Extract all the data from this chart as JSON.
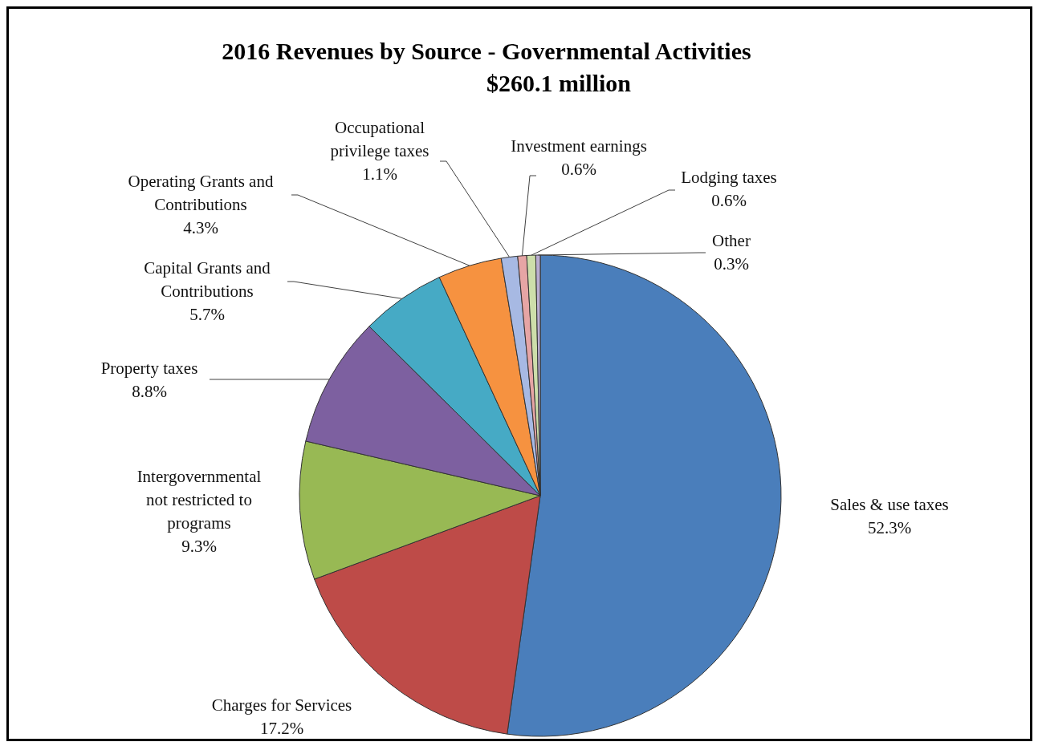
{
  "chart_data": {
    "type": "pie",
    "title": "2016 Revenues by Source - Governmental  Activities",
    "subtitle": "$260.1 million",
    "categories": [
      "Sales & use taxes",
      "Charges for Services",
      "Intergovernmental not restricted to programs",
      "Property taxes",
      "Capital Grants and Contributions",
      "Operating Grants and Contributions",
      "Occupational privilege taxes",
      "Investment  earnings",
      "Lodging taxes",
      "Other"
    ],
    "values": [
      52.3,
      17.2,
      9.3,
      8.8,
      5.7,
      4.3,
      1.1,
      0.6,
      0.6,
      0.3
    ],
    "value_labels": [
      "52.3%",
      "17.2%",
      "9.3%",
      "8.8%",
      "5.7%",
      "4.3%",
      "1.1%",
      "0.6%",
      "0.6%",
      "0.3%"
    ],
    "colors": [
      "#4a7ebb",
      "#be4b48",
      "#98b954",
      "#7d60a0",
      "#46aac5",
      "#f69240",
      "#a7b9e3",
      "#e6a5a5",
      "#cddeaa",
      "#b9add1"
    ]
  }
}
